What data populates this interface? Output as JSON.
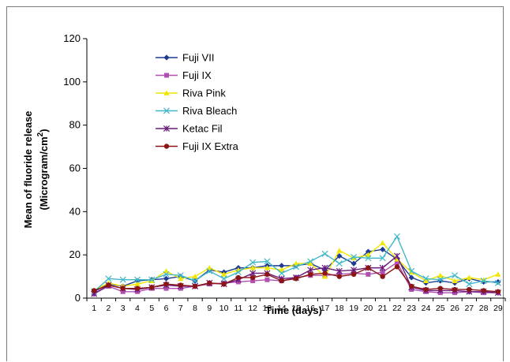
{
  "chart_data": {
    "type": "line",
    "xlabel": "Time (days)",
    "ylabel": "Mean of fluoride release",
    "ylabel_unit_prefix": "(Microgram/cm",
    "ylabel_unit_sup": "2",
    "ylabel_unit_suffix": ")",
    "ylim": [
      0,
      120
    ],
    "yticks": [
      0,
      20,
      40,
      60,
      80,
      100,
      120
    ],
    "grid": false,
    "legend_position": "top-left",
    "x": [
      1,
      2,
      3,
      4,
      5,
      6,
      7,
      8,
      9,
      10,
      11,
      12,
      13,
      14,
      15,
      16,
      17,
      18,
      19,
      20,
      21,
      22,
      23,
      24,
      25,
      26,
      27,
      28,
      29
    ],
    "series": [
      {
        "name": "Fuji VII",
        "color": "#1f3a93",
        "marker": "diamond",
        "values": [
          3,
          6.5,
          5.5,
          8,
          8.5,
          9,
          10,
          8,
          13,
          12,
          14,
          14,
          15,
          15,
          15,
          16,
          13,
          19.5,
          16,
          21.5,
          22.5,
          18,
          9.5,
          7,
          8,
          7,
          9,
          7.5,
          7.5
        ]
      },
      {
        "name": "Fuji IX",
        "color": "#b050b0",
        "marker": "square",
        "values": [
          2,
          5.5,
          3,
          3,
          4.5,
          4.5,
          4.5,
          5.5,
          6.5,
          7,
          7.5,
          8,
          8.5,
          8,
          9.5,
          10.5,
          10.5,
          11,
          11.5,
          11,
          12,
          16.5,
          4,
          3,
          2.5,
          2.5,
          3,
          2.5,
          2.5
        ]
      },
      {
        "name": "Riva Pink",
        "color": "#f2e600",
        "marker": "triangle",
        "values": [
          3.5,
          7,
          5.5,
          6.5,
          8,
          12.5,
          9,
          10,
          14,
          11,
          13,
          14,
          14,
          13,
          16,
          16,
          10,
          22,
          18.5,
          20,
          25.5,
          18,
          12,
          8,
          10.5,
          8,
          9.5,
          8.5,
          11
        ]
      },
      {
        "name": "Riva Bleach",
        "color": "#40b8c8",
        "marker": "x",
        "values": [
          3,
          9,
          8.5,
          8.5,
          8.5,
          11,
          10.5,
          8,
          12.5,
          9,
          12,
          16.5,
          17,
          11.5,
          14.5,
          17,
          20.5,
          16,
          19,
          18.5,
          18.5,
          28.5,
          12.5,
          9,
          8.5,
          10.5,
          6.5,
          8,
          7
        ]
      },
      {
        "name": "Ketac Fil",
        "color": "#6a1a7a",
        "marker": "asterisk",
        "values": [
          2,
          6,
          4.5,
          4,
          5,
          6,
          5.5,
          5.5,
          7,
          6.5,
          8.5,
          11.5,
          11.5,
          9,
          9.5,
          13,
          14,
          12.5,
          13,
          14,
          14,
          19.5,
          5,
          3.5,
          3.5,
          3.5,
          3,
          3,
          2.5
        ]
      },
      {
        "name": "Fuji IX Extra",
        "color": "#8b1414",
        "marker": "circle",
        "values": [
          3.5,
          6,
          4.5,
          4.5,
          5,
          6.5,
          6,
          5.5,
          7,
          6.5,
          9.5,
          9.5,
          11,
          8,
          9,
          11,
          11.5,
          10,
          11,
          14,
          10,
          14.5,
          5.5,
          4,
          4.5,
          4,
          4,
          3.5,
          3
        ]
      }
    ]
  }
}
